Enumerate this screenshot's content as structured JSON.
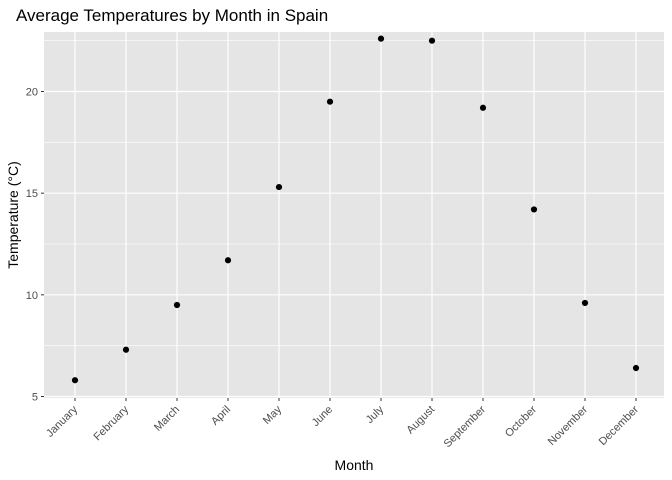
{
  "chart_data": {
    "type": "scatter",
    "title": "Average Temperatures by Month in Spain",
    "xlabel": "Month",
    "ylabel": "Temperature (°C)",
    "categories": [
      "January",
      "February",
      "March",
      "April",
      "May",
      "June",
      "July",
      "August",
      "September",
      "October",
      "November",
      "December"
    ],
    "values": [
      5.8,
      7.3,
      9.5,
      11.7,
      15.3,
      19.5,
      22.6,
      22.5,
      19.2,
      14.2,
      9.6,
      6.4
    ],
    "ylim": [
      5,
      23
    ],
    "yticks": [
      5,
      10,
      15,
      20
    ],
    "ytick_labels": [
      "5",
      "10",
      "15",
      "20"
    ],
    "grid": true,
    "colors": {
      "panel_background": "#e5e5e5",
      "gridline": "#ffffff",
      "point": "#000000",
      "tick_mark": "#333333"
    }
  }
}
